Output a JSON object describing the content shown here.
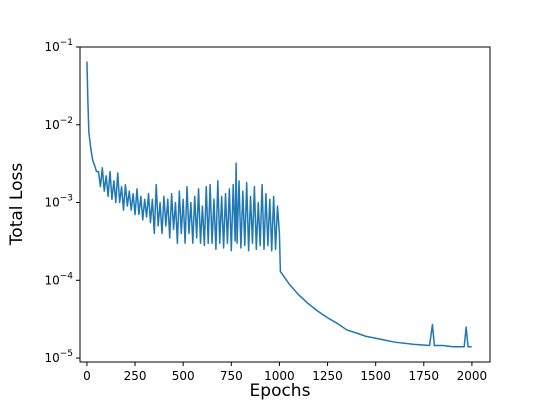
{
  "chart_data": {
    "type": "line",
    "x_label": "Epochs",
    "y_label": "Total Loss",
    "color": "#1f77b4",
    "log_y": true,
    "x": [
      0,
      5,
      10,
      20,
      30,
      40,
      50,
      60,
      70,
      80,
      90,
      100,
      110,
      120,
      130,
      140,
      150,
      160,
      170,
      180,
      190,
      200,
      210,
      220,
      230,
      240,
      250,
      260,
      270,
      280,
      290,
      300,
      310,
      320,
      330,
      340,
      350,
      360,
      370,
      380,
      390,
      400,
      410,
      420,
      430,
      440,
      450,
      460,
      470,
      480,
      490,
      500,
      510,
      520,
      530,
      540,
      550,
      560,
      570,
      580,
      590,
      600,
      610,
      620,
      630,
      640,
      650,
      660,
      670,
      680,
      690,
      700,
      710,
      720,
      730,
      740,
      750,
      760,
      770,
      775,
      780,
      790,
      800,
      810,
      820,
      830,
      840,
      850,
      860,
      870,
      880,
      890,
      900,
      910,
      920,
      930,
      940,
      950,
      960,
      970,
      980,
      990,
      1000,
      1005,
      1050,
      1100,
      1150,
      1200,
      1250,
      1300,
      1350,
      1400,
      1450,
      1500,
      1600,
      1700,
      1780,
      1795,
      1805,
      1850,
      1900,
      1960,
      1970,
      1980,
      1999
    ],
    "values": [
      0.065,
      0.02,
      0.008,
      0.005,
      0.0035,
      0.003,
      0.0025,
      0.0025,
      0.0016,
      0.0028,
      0.0014,
      0.0022,
      0.0012,
      0.0025,
      0.0011,
      0.0019,
      0.001,
      0.0024,
      0.001,
      0.0016,
      0.0008,
      0.0017,
      0.0009,
      0.0014,
      0.0008,
      0.0013,
      0.0007,
      0.0015,
      0.0007,
      0.0012,
      0.0006,
      0.0011,
      0.00065,
      0.0013,
      0.00055,
      0.0011,
      0.0004,
      0.0017,
      0.0005,
      0.001,
      0.0004,
      0.0012,
      0.0005,
      0.0011,
      0.00035,
      0.0013,
      0.00045,
      0.001,
      0.0003,
      0.0014,
      0.0004,
      0.0011,
      0.0003,
      0.0016,
      0.0004,
      0.001,
      0.0003,
      0.0012,
      0.00035,
      0.0015,
      0.0003,
      0.0009,
      0.00028,
      0.0016,
      0.0003,
      0.0017,
      0.0003,
      0.0011,
      0.00025,
      0.0019,
      0.0003,
      0.0012,
      0.00026,
      0.0013,
      0.0003,
      0.0015,
      0.00024,
      0.0017,
      0.00032,
      0.0032,
      0.0003,
      0.0019,
      0.00026,
      0.0014,
      0.00028,
      0.0018,
      0.00024,
      0.0012,
      0.0003,
      0.0016,
      0.00025,
      0.001,
      0.00028,
      0.0017,
      0.00025,
      0.0013,
      0.00028,
      0.0011,
      0.00024,
      0.0012,
      0.00025,
      0.0009,
      0.0004,
      0.00013,
      9e-05,
      6.5e-05,
      5e-05,
      4e-05,
      3.3e-05,
      2.8e-05,
      2.3e-05,
      2.1e-05,
      1.9e-05,
      1.8e-05,
      1.6e-05,
      1.5e-05,
      1.45e-05,
      2.7e-05,
      1.45e-05,
      1.45e-05,
      1.4e-05,
      1.4e-05,
      2.5e-05,
      1.4e-05,
      1.4e-05
    ],
    "xlim": [
      -36,
      2094
    ],
    "ylim": [
      8.9e-06,
      0.1
    ],
    "xticks": [
      0,
      250,
      500,
      750,
      1000,
      1250,
      1500,
      1750,
      2000
    ],
    "yticks": [
      {
        "value": 1e-05,
        "label": "10−5"
      },
      {
        "value": 0.0001,
        "label": "10−4"
      },
      {
        "value": 0.001,
        "label": "10−3"
      },
      {
        "value": 0.01,
        "label": "10−2"
      },
      {
        "value": 0.1,
        "label": "10−1"
      }
    ]
  }
}
